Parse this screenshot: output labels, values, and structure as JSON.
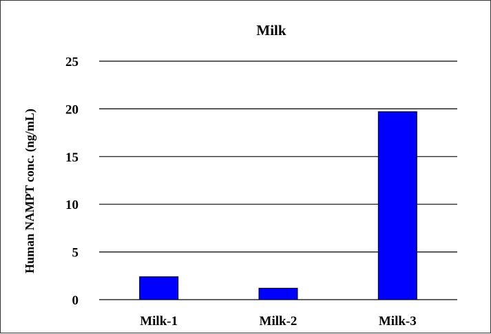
{
  "chart_data": {
    "type": "bar",
    "title": "Milk",
    "xlabel": "",
    "ylabel": "Human NAMPT conc. (ng/mL)",
    "categories": [
      "Milk-1",
      "Milk-2",
      "Milk-3"
    ],
    "values": [
      2.4,
      1.2,
      19.7
    ],
    "ylim": [
      0,
      25
    ],
    "yticks": [
      0,
      5,
      10,
      15,
      20,
      25
    ],
    "grid": true,
    "legend": "none",
    "colors": {
      "bar": "#0000ff",
      "bar_outline": "#000000",
      "grid": "#000000"
    }
  }
}
